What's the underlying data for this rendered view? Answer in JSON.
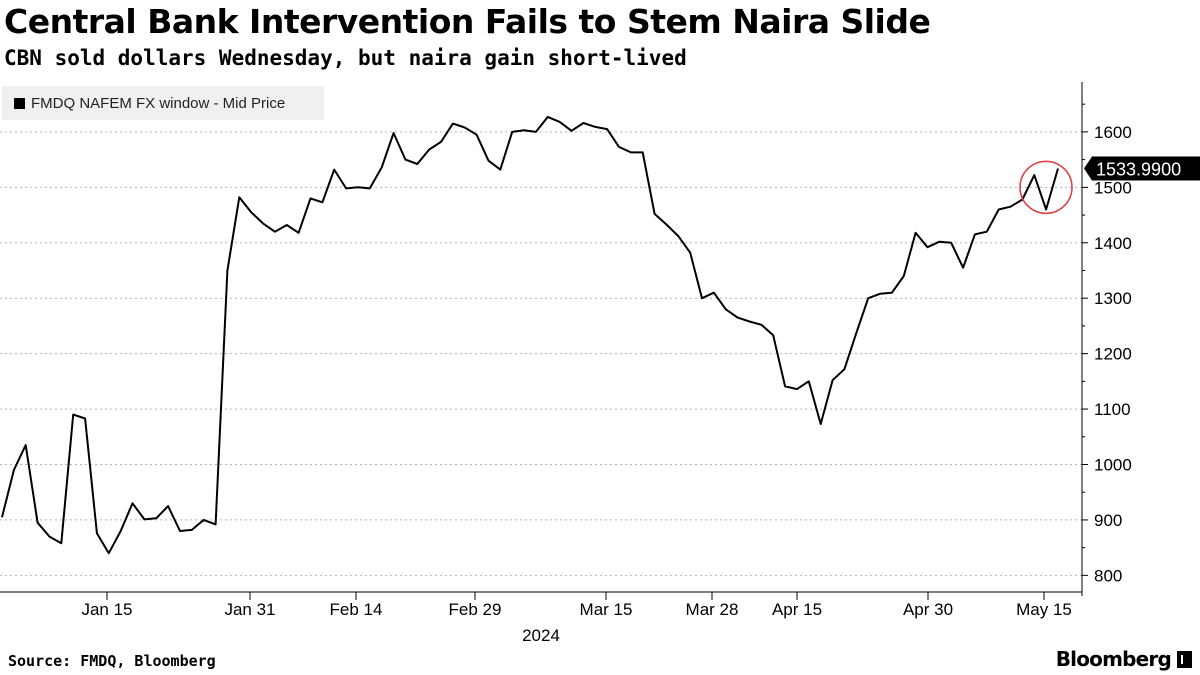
{
  "header": {
    "title": "Central Bank Intervention Fails to Stem Naira Slide",
    "subtitle": "CBN sold dollars Wednesday, but naira gain short-lived"
  },
  "footer": {
    "source": "Source: FMDQ, Bloomberg",
    "brand": "Bloomberg"
  },
  "colors": {
    "line": "#000000",
    "highlight_circle": "#e0393e",
    "last_value_badge": "#000000",
    "legend_bg": "#f0f0f0",
    "grid": "#b3b3b3"
  },
  "chart_data": {
    "type": "line",
    "title": "Central Bank Intervention Fails to Stem Naira Slide",
    "subtitle": "CBN sold dollars Wednesday, but naira gain short-lived",
    "xlabel": "2024",
    "ylabel": "",
    "ylim": [
      770,
      1690
    ],
    "y_ticks": [
      800,
      900,
      1000,
      1100,
      1200,
      1300,
      1400,
      1500,
      1600
    ],
    "x_ticks": [
      "Jan 15",
      "Jan 31",
      "Feb 14",
      "Feb 29",
      "Mar 15",
      "Mar 28",
      "Apr 15",
      "Apr 30",
      "May 15"
    ],
    "x_year_label": "2024",
    "grid": "horizontal dashed",
    "legend": "top-left",
    "last_value_label": "1533.9900",
    "highlight": "last two sessions (around May 15)",
    "series": [
      {
        "name": "FMDQ NAFEM FX window - Mid Price",
        "values": [
          905,
          990,
          1035,
          895,
          870,
          858,
          1090,
          1083,
          876,
          840,
          880,
          930,
          901,
          903,
          925,
          880,
          882,
          900,
          892,
          1350,
          1482,
          1455,
          1435,
          1420,
          1432,
          1418,
          1480,
          1473,
          1532,
          1498,
          1500,
          1498,
          1536,
          1598,
          1550,
          1542,
          1568,
          1582,
          1615,
          1608,
          1595,
          1548,
          1532,
          1600,
          1603,
          1600,
          1627,
          1618,
          1602,
          1616,
          1609,
          1605,
          1573,
          1563,
          1563,
          1452,
          1433,
          1412,
          1382,
          1300,
          1310,
          1280,
          1265,
          1258,
          1252,
          1233,
          1141,
          1136,
          1150,
          1073,
          1152,
          1172,
          1237,
          1300,
          1308,
          1310,
          1340,
          1418,
          1392,
          1402,
          1400,
          1355,
          1415,
          1420,
          1460,
          1465,
          1478,
          1522,
          1460,
          1533.99
        ]
      }
    ]
  }
}
